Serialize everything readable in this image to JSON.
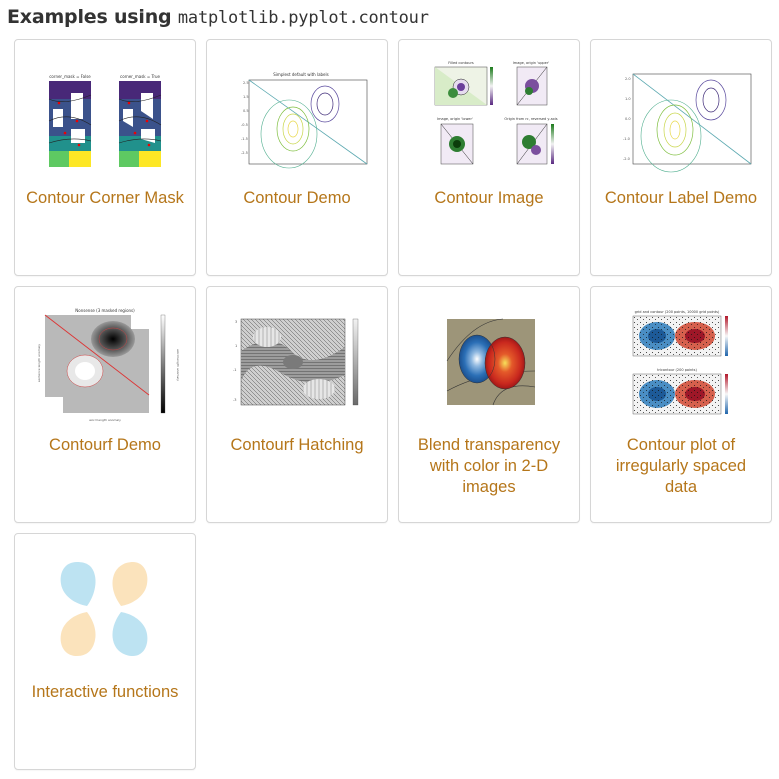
{
  "heading": {
    "prefix": "Examples using ",
    "code": "matplotlib.pyplot.contour"
  },
  "colors": {
    "link": "#b5761a",
    "border": "#d6d6d6",
    "heading": "#333333"
  },
  "examples": [
    {
      "title": "Contour Corner Mask",
      "thumb_labels": [
        "corner_mask = False",
        "corner_mask = True"
      ]
    },
    {
      "title": "Contour Demo",
      "thumb_labels": [
        "Simplest default with labels"
      ]
    },
    {
      "title": "Contour Image",
      "thumb_labels": [
        "Filled contours",
        "Image, origin 'upper'",
        "Image, origin 'lower'",
        "Origin from rc, reversed y-axis"
      ]
    },
    {
      "title": "Contour Label Demo"
    },
    {
      "title": "Contourf Demo",
      "thumb_labels": [
        "Nonsense (3 masked regions)",
        "word length anomaly",
        "sentence length anomaly",
        "word length anomaly"
      ]
    },
    {
      "title": "Contourf Hatching"
    },
    {
      "title": "Blend transparency with color in 2-D images"
    },
    {
      "title": "Contour plot of irregularly spaced data",
      "thumb_labels": [
        "grid and contour (200 points, 10000 grid points)",
        "tricontour (200 points)"
      ]
    },
    {
      "title": "Interactive functions"
    }
  ]
}
